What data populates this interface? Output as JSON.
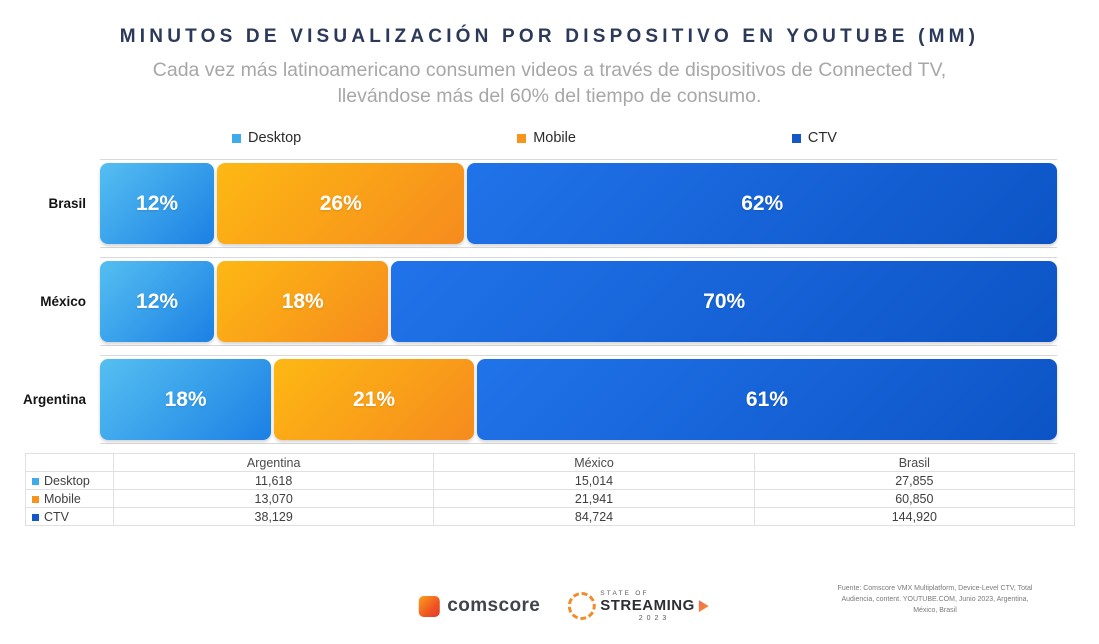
{
  "title": "MINUTOS DE VISUALIZACIÓN POR DISPOSITIVO EN YOUTUBE (MM)",
  "subtitle_line1": "Cada vez más latinoamericano consumen videos a través de dispositivos de Connected TV,",
  "subtitle_line2": "llevándose más del 60% del tiempo de consumo.",
  "legend": [
    {
      "label": "Desktop",
      "color": "#3fabe8"
    },
    {
      "label": "Mobile",
      "color": "#f7941e"
    },
    {
      "label": "CTV",
      "color": "#1458c8"
    }
  ],
  "chart_data": {
    "type": "bar",
    "variant": "horizontal-stacked-100",
    "unit": "%",
    "x_range": [
      0,
      100
    ],
    "legend_position": "top",
    "grid": "row-separators",
    "title": "MINUTOS DE VISUALIZACIÓN POR DISPOSITIVO EN YOUTUBE (MM)",
    "categories": [
      "Brasil",
      "México",
      "Argentina"
    ],
    "series": [
      {
        "name": "Desktop",
        "gradient": [
          "#55bff1",
          "#1b80e4"
        ],
        "values": [
          12,
          12,
          18
        ]
      },
      {
        "name": "Mobile",
        "gradient": [
          "#fdb813",
          "#f68b1e"
        ],
        "values": [
          26,
          18,
          21
        ]
      },
      {
        "name": "CTV",
        "gradient": [
          "#2173e9",
          "#0c54c6"
        ],
        "values": [
          62,
          70,
          61
        ]
      }
    ],
    "absolute_values_mm": {
      "columns": [
        "Argentina",
        "México",
        "Brasil"
      ],
      "rows": [
        {
          "label": "Desktop",
          "values": [
            "11,618",
            "15,014",
            "27,855"
          ]
        },
        {
          "label": "Mobile",
          "values": [
            "13,070",
            "21,941",
            "60,850"
          ]
        },
        {
          "label": "CTV",
          "values": [
            "38,129",
            "84,724",
            "144,920"
          ]
        }
      ]
    }
  },
  "footer": {
    "comscore": "comscore",
    "streaming": {
      "state_of": "STATE OF",
      "streaming": "STREAMING",
      "year": "2023"
    },
    "source_lines": [
      "Fuente: Comscore VMX Multiplatform, Device-Level CTV, Total",
      "Audiencia, content. YOUTUBE.COM, Junio 2023, Argentina,",
      "México, Brasil"
    ]
  }
}
